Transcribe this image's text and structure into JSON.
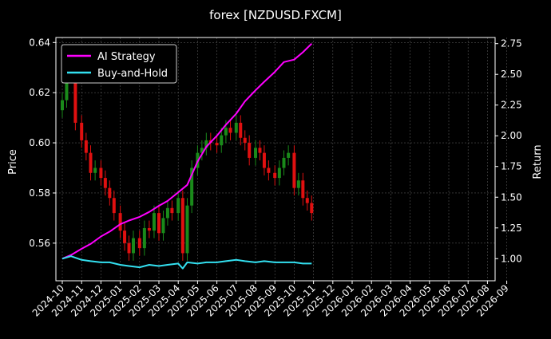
{
  "chart_data": {
    "type": "line",
    "title": "forex [NZDUSD.FXCM]",
    "ylabel": "Price",
    "y2label": "Return",
    "ylim": [
      0.545,
      0.642
    ],
    "y2lim": [
      0.82,
      2.8
    ],
    "yticks": [
      "0.56",
      "0.58",
      "0.60",
      "0.62",
      "0.64"
    ],
    "y2ticks": [
      "1.00",
      "1.25",
      "1.50",
      "1.75",
      "2.00",
      "2.25",
      "2.50",
      "2.75"
    ],
    "xticks": [
      "2024-10",
      "2024-11",
      "2024-12",
      "2025-01",
      "2025-02",
      "2025-03",
      "2025-04",
      "2025-05",
      "2025-06",
      "2025-07",
      "2025-08",
      "2025-09",
      "2025-10",
      "2025-11",
      "2025-12",
      "2026-01",
      "2026-02",
      "2026-03",
      "2026-04",
      "2026-05",
      "2026-06",
      "2026-07",
      "2026-08",
      "2026-09"
    ],
    "grid": true,
    "legend_position": "top-left",
    "colors": {
      "ai": "#ff00ff",
      "bh": "#33e0f0",
      "up": "#1a8a1a",
      "down": "#e01010"
    },
    "series": [
      {
        "name": "AI Strategy",
        "axis": "right",
        "x": [
          "2024-10-01",
          "2024-10-15",
          "2024-11-01",
          "2024-11-15",
          "2024-12-01",
          "2024-12-15",
          "2025-01-01",
          "2025-01-15",
          "2025-02-01",
          "2025-02-15",
          "2025-03-01",
          "2025-03-15",
          "2025-04-01",
          "2025-04-15",
          "2025-05-01",
          "2025-05-15",
          "2025-06-01",
          "2025-06-15",
          "2025-07-01",
          "2025-07-15",
          "2025-08-01",
          "2025-08-15",
          "2025-09-01",
          "2025-09-15",
          "2025-10-01",
          "2025-10-15",
          "2025-10-29"
        ],
        "values": [
          1.0,
          1.03,
          1.08,
          1.12,
          1.18,
          1.22,
          1.28,
          1.31,
          1.34,
          1.38,
          1.43,
          1.47,
          1.54,
          1.6,
          1.79,
          1.91,
          2.0,
          2.09,
          2.18,
          2.28,
          2.37,
          2.44,
          2.52,
          2.6,
          2.62,
          2.68,
          2.75
        ]
      },
      {
        "name": "Buy-and-Hold",
        "axis": "right",
        "x": [
          "2024-10-01",
          "2024-10-15",
          "2024-11-01",
          "2024-11-15",
          "2024-12-01",
          "2024-12-15",
          "2025-01-01",
          "2025-01-15",
          "2025-02-01",
          "2025-02-15",
          "2025-03-01",
          "2025-03-15",
          "2025-04-01",
          "2025-04-08",
          "2025-04-15",
          "2025-05-01",
          "2025-05-15",
          "2025-06-01",
          "2025-06-15",
          "2025-07-01",
          "2025-07-15",
          "2025-08-01",
          "2025-08-15",
          "2025-09-01",
          "2025-09-15",
          "2025-10-01",
          "2025-10-15",
          "2025-10-29"
        ],
        "values": [
          1.0,
          1.02,
          0.99,
          0.98,
          0.97,
          0.97,
          0.95,
          0.94,
          0.93,
          0.95,
          0.94,
          0.95,
          0.96,
          0.92,
          0.97,
          0.96,
          0.97,
          0.97,
          0.98,
          0.99,
          0.98,
          0.97,
          0.98,
          0.97,
          0.97,
          0.97,
          0.96,
          0.96
        ]
      }
    ],
    "price": {
      "x": [
        "2024-10-01",
        "2024-10-08",
        "2024-10-15",
        "2024-10-22",
        "2024-11-01",
        "2024-11-08",
        "2024-11-15",
        "2024-11-22",
        "2024-12-01",
        "2024-12-08",
        "2024-12-15",
        "2024-12-22",
        "2025-01-01",
        "2025-01-08",
        "2025-01-15",
        "2025-01-22",
        "2025-02-01",
        "2025-02-08",
        "2025-02-15",
        "2025-02-22",
        "2025-03-01",
        "2025-03-08",
        "2025-03-15",
        "2025-03-22",
        "2025-04-01",
        "2025-04-08",
        "2025-04-15",
        "2025-04-22",
        "2025-05-01",
        "2025-05-08",
        "2025-05-15",
        "2025-05-22",
        "2025-06-01",
        "2025-06-08",
        "2025-06-15",
        "2025-06-22",
        "2025-07-01",
        "2025-07-08",
        "2025-07-15",
        "2025-07-22",
        "2025-08-01",
        "2025-08-08",
        "2025-08-15",
        "2025-08-22",
        "2025-09-01",
        "2025-09-08",
        "2025-09-15",
        "2025-09-22",
        "2025-10-01",
        "2025-10-08",
        "2025-10-15",
        "2025-10-22",
        "2025-10-29"
      ],
      "close": [
        0.617,
        0.628,
        0.63,
        0.608,
        0.601,
        0.596,
        0.588,
        0.59,
        0.586,
        0.582,
        0.578,
        0.572,
        0.565,
        0.56,
        0.556,
        0.562,
        0.558,
        0.566,
        0.565,
        0.572,
        0.564,
        0.57,
        0.574,
        0.572,
        0.578,
        0.556,
        0.575,
        0.59,
        0.596,
        0.598,
        0.601,
        0.6,
        0.599,
        0.603,
        0.606,
        0.604,
        0.608,
        0.602,
        0.6,
        0.594,
        0.598,
        0.596,
        0.59,
        0.588,
        0.586,
        0.59,
        0.594,
        0.596,
        0.582,
        0.585,
        0.578,
        0.576,
        0.572
      ]
    }
  }
}
